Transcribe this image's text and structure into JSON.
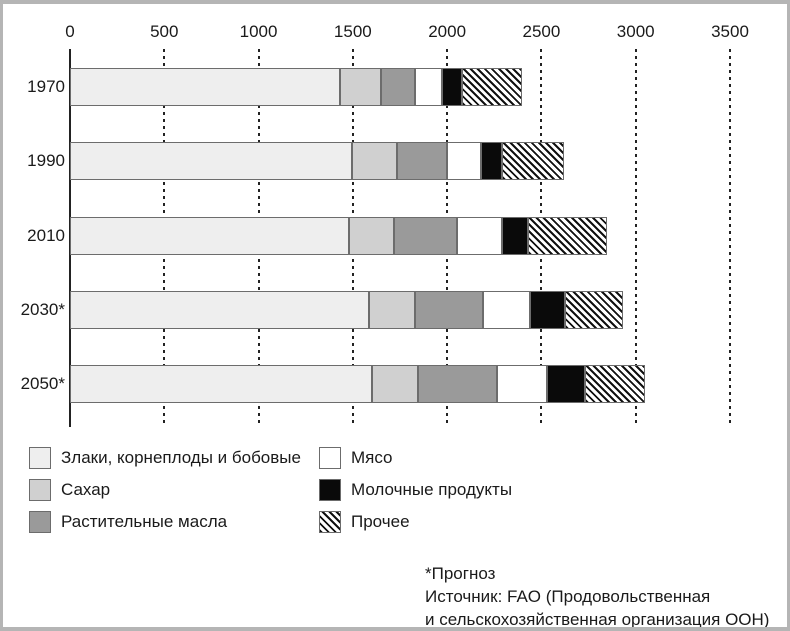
{
  "chart_data": {
    "type": "bar",
    "orientation": "horizontal",
    "stacked": true,
    "title": "",
    "xlabel": "",
    "ylabel": "",
    "xlim": [
      0,
      3500
    ],
    "x_ticks": [
      0,
      500,
      1000,
      1500,
      2000,
      2500,
      3000,
      3500
    ],
    "grid": "dashed-vertical",
    "legend_position": "bottom, two columns",
    "categories": [
      "1970",
      "1990",
      "2010",
      "2030*",
      "2050*"
    ],
    "series": [
      {
        "name": "Злаки, корнеплоды и бобовые",
        "color": "#eeeeee",
        "pattern": "solid",
        "values": [
          1430,
          1495,
          1480,
          1585,
          1600
        ]
      },
      {
        "name": "Сахар",
        "color": "#d0d0d0",
        "pattern": "solid",
        "values": [
          220,
          240,
          240,
          245,
          245
        ]
      },
      {
        "name": "Растительные масла",
        "color": "#9a9a9a",
        "pattern": "solid",
        "values": [
          180,
          265,
          330,
          360,
          420
        ]
      },
      {
        "name": "Мясо",
        "color": "#ffffff",
        "pattern": "solid",
        "values": [
          145,
          180,
          240,
          250,
          265
        ]
      },
      {
        "name": "Молочные продукты",
        "color": "#0a0a0a",
        "pattern": "solid",
        "values": [
          105,
          110,
          140,
          185,
          200
        ]
      },
      {
        "name": "Прочее",
        "color": "#ffffff",
        "pattern": "diagonal-hatch",
        "values": [
          315,
          330,
          420,
          305,
          320
        ]
      }
    ],
    "totals": [
      2395,
      2620,
      2850,
      2930,
      3050
    ]
  },
  "styles": {
    "hatch_stripe_color": "#111111",
    "hatch_background": "#ffffff",
    "segment_border_color": "#6c6c6c",
    "gridline_color": "#222222",
    "frame_border_color": "#b5b5b5"
  },
  "footnote": {
    "line1": "*Прогноз",
    "line2": "Источник: FAO (Продовольственная",
    "line3": "и сельскохозяйственная организация ООН)"
  }
}
